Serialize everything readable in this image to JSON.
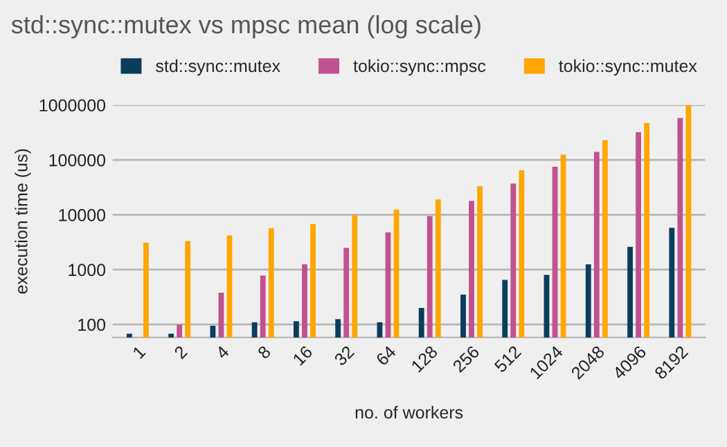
{
  "chart_data": {
    "type": "bar",
    "title": "std::sync::mutex vs mpsc mean (log scale)",
    "xlabel": "no. of workers",
    "ylabel": "execution time (us)",
    "categories": [
      "1",
      "2",
      "4",
      "8",
      "16",
      "32",
      "64",
      "128",
      "256",
      "512",
      "1024",
      "2048",
      "4096",
      "8192"
    ],
    "series": [
      {
        "name": "std::sync::mutex",
        "color": "#0b3d5c",
        "values": [
          68,
          68,
          95,
          110,
          115,
          125,
          110,
          200,
          350,
          650,
          800,
          1250,
          2600,
          5800
        ]
      },
      {
        "name": "tokio::sync::mpsc",
        "color": "#c0528f",
        "values": [
          null,
          100,
          380,
          780,
          1250,
          2500,
          4800,
          9500,
          18000,
          37000,
          75000,
          140000,
          320000,
          580000
        ]
      },
      {
        "name": "tokio::sync::mutex",
        "color": "#ffa600",
        "values": [
          3100,
          3300,
          4200,
          5700,
          6800,
          10000,
          12500,
          19000,
          33000,
          65000,
          125000,
          230000,
          470000,
          1000000
        ]
      }
    ],
    "log": true,
    "ylim": [
      58,
      1000000
    ],
    "yticks": [
      100,
      1000,
      10000,
      100000,
      1000000
    ],
    "grid": "y",
    "legend": "top"
  }
}
